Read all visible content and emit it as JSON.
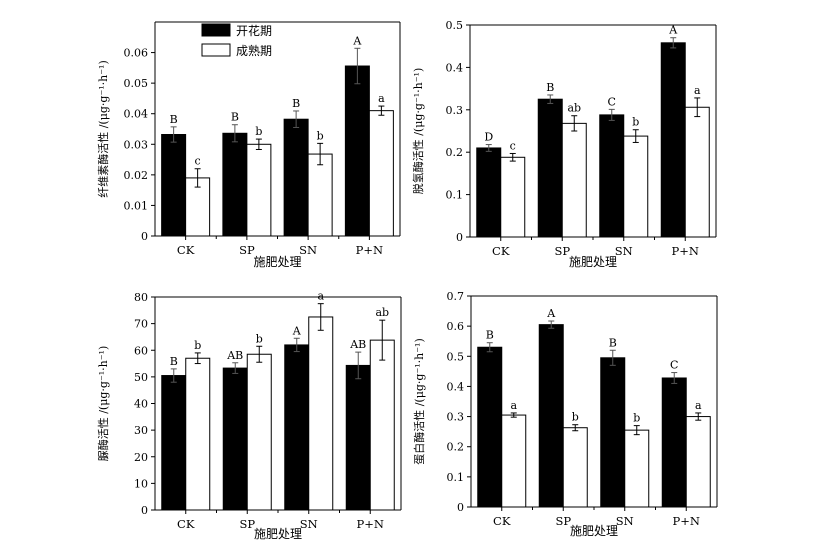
{
  "legend": [
    {
      "label": "开花期",
      "color": "#000000"
    },
    {
      "label": "成熟期",
      "color": "#ffffff"
    }
  ],
  "chart_data": [
    {
      "type": "bar",
      "panel": "top-left",
      "categories": [
        "CK",
        "SP",
        "SN",
        "P+N"
      ],
      "xlabel": "施肥处理",
      "ylabel": "纤维素酶活性 /(μg·g⁻¹·h⁻¹)",
      "ylim": [
        0,
        0.07
      ],
      "yticks": [
        0,
        0.01,
        0.02,
        0.03,
        0.04,
        0.05,
        0.06
      ],
      "ytick_labels": [
        "0",
        "0.01",
        "0.02",
        "0.03",
        "0.04",
        "0.05",
        "0.06"
      ],
      "series": [
        {
          "name": "开花期",
          "color": "#000000",
          "values": [
            0.0332,
            0.0336,
            0.0382,
            0.0556
          ],
          "errors": [
            0.0025,
            0.0028,
            0.0027,
            0.0058
          ],
          "letters": [
            "B",
            "B",
            "B",
            "A"
          ]
        },
        {
          "name": "成熟期",
          "color": "#ffffff",
          "values": [
            0.019,
            0.03,
            0.0268,
            0.041
          ],
          "errors": [
            0.003,
            0.0017,
            0.0035,
            0.0015
          ],
          "letters": [
            "c",
            "b",
            "b",
            "a"
          ]
        }
      ]
    },
    {
      "type": "bar",
      "panel": "top-right",
      "categories": [
        "CK",
        "SP",
        "SN",
        "P+N"
      ],
      "xlabel": "施肥处理",
      "ylabel": "脱氢酶活性 /(μg·g⁻¹·h⁻¹)",
      "ylim": [
        0,
        0.5
      ],
      "yticks": [
        0,
        0.1,
        0.2,
        0.3,
        0.4,
        0.5
      ],
      "ytick_labels": [
        "0",
        "0.1",
        "0.2",
        "0.3",
        "0.4",
        "0.5"
      ],
      "series": [
        {
          "name": "开花期",
          "color": "#000000",
          "values": [
            0.21,
            0.325,
            0.288,
            0.458
          ],
          "errors": [
            0.008,
            0.01,
            0.013,
            0.012
          ],
          "letters": [
            "D",
            "B",
            "C",
            "A"
          ]
        },
        {
          "name": "成熟期",
          "color": "#ffffff",
          "values": [
            0.188,
            0.268,
            0.238,
            0.306
          ],
          "errors": [
            0.009,
            0.018,
            0.015,
            0.022
          ],
          "letters": [
            "c",
            "ab",
            "b",
            "a"
          ]
        }
      ]
    },
    {
      "type": "bar",
      "panel": "bottom-left",
      "categories": [
        "CK",
        "SP",
        "SN",
        "P+N"
      ],
      "xlabel": "施肥处理",
      "ylabel": "脲酶活性 /(μg·g⁻¹·h⁻¹)",
      "ylim": [
        0,
        80
      ],
      "yticks": [
        0,
        10,
        20,
        30,
        40,
        50,
        60,
        70,
        80
      ],
      "ytick_labels": [
        "0",
        "10",
        "20",
        "30",
        "40",
        "50",
        "60",
        "70",
        "80"
      ],
      "series": [
        {
          "name": "开花期",
          "color": "#000000",
          "values": [
            50.5,
            53.3,
            62.0,
            54.3
          ],
          "errors": [
            2.5,
            2.0,
            2.5,
            5.0
          ],
          "letters": [
            "B",
            "AB",
            "A",
            "AB"
          ]
        },
        {
          "name": "成熟期",
          "color": "#ffffff",
          "values": [
            57.0,
            58.5,
            72.5,
            63.8
          ],
          "errors": [
            2.0,
            3.0,
            5.0,
            7.5
          ],
          "letters": [
            "b",
            "b",
            "a",
            "ab"
          ]
        }
      ]
    },
    {
      "type": "bar",
      "panel": "bottom-right",
      "categories": [
        "CK",
        "SP",
        "SN",
        "P+N"
      ],
      "xlabel": "施肥处理",
      "ylabel": "蛋白酶活性 /(μg·g⁻¹·h⁻¹)",
      "ylim": [
        0,
        0.7
      ],
      "yticks": [
        0,
        0.1,
        0.2,
        0.3,
        0.4,
        0.5,
        0.6,
        0.7
      ],
      "ytick_labels": [
        "0",
        "0.1",
        "0.2",
        "0.3",
        "0.4",
        "0.5",
        "0.6",
        "0.7"
      ],
      "series": [
        {
          "name": "开花期",
          "color": "#000000",
          "values": [
            0.53,
            0.605,
            0.495,
            0.428
          ],
          "errors": [
            0.015,
            0.012,
            0.025,
            0.018
          ],
          "letters": [
            "B",
            "A",
            "B",
            "C"
          ]
        },
        {
          "name": "成熟期",
          "color": "#ffffff",
          "values": [
            0.305,
            0.263,
            0.255,
            0.3
          ],
          "errors": [
            0.007,
            0.01,
            0.015,
            0.012
          ],
          "letters": [
            "a",
            "b",
            "b",
            "a"
          ]
        }
      ]
    }
  ]
}
